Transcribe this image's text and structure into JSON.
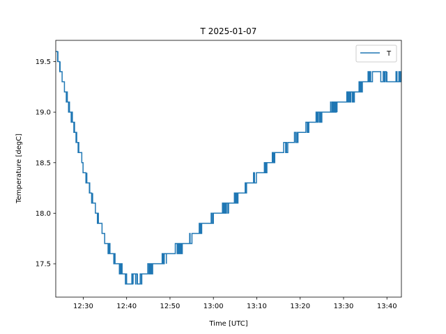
{
  "chart_data": {
    "type": "line",
    "title": "T 2025-01-07",
    "xlabel": "Time [UTC]",
    "ylabel": "Temperature [degC]",
    "x_unit": "time of day (UTC)",
    "xlim": [
      "12:23:40",
      "13:43:20"
    ],
    "ylim": [
      17.17,
      19.71
    ],
    "x_ticks": [
      "12:30",
      "12:40",
      "12:50",
      "13:00",
      "13:10",
      "13:20",
      "13:30",
      "13:40"
    ],
    "y_ticks": [
      "17.5",
      "18.0",
      "18.5",
      "19.0",
      "19.5"
    ],
    "grid": false,
    "legend": {
      "position": "top-right",
      "entries": [
        "T"
      ]
    },
    "series": [
      {
        "name": "T",
        "color": "#1f77b4",
        "quantization": 0.1,
        "points": [
          [
            "12:23:40",
            19.6
          ],
          [
            "12:24:10",
            19.5
          ],
          [
            "12:24:40",
            19.4
          ],
          [
            "12:25:10",
            19.3
          ],
          [
            "12:25:40",
            19.2
          ],
          [
            "12:26:20",
            19.1
          ],
          [
            "12:26:50",
            19.0
          ],
          [
            "12:27:30",
            18.9
          ],
          [
            "12:28:00",
            18.8
          ],
          [
            "12:28:30",
            18.7
          ],
          [
            "12:29:00",
            18.6
          ],
          [
            "12:29:40",
            18.5
          ],
          [
            "12:30:10",
            18.4
          ],
          [
            "12:30:50",
            18.3
          ],
          [
            "12:31:30",
            18.2
          ],
          [
            "12:32:10",
            18.1
          ],
          [
            "12:32:50",
            18.0
          ],
          [
            "12:33:30",
            17.9
          ],
          [
            "12:34:20",
            17.8
          ],
          [
            "12:35:10",
            17.7
          ],
          [
            "12:36:10",
            17.6
          ],
          [
            "12:37:20",
            17.5
          ],
          [
            "12:39:00",
            17.4
          ],
          [
            "12:40:00",
            17.3
          ],
          [
            "12:41:30",
            17.4
          ],
          [
            "12:42:30",
            17.3
          ],
          [
            "12:43:30",
            17.4
          ],
          [
            "12:46:00",
            17.5
          ],
          [
            "12:49:10",
            17.6
          ],
          [
            "12:52:50",
            17.7
          ],
          [
            "12:55:10",
            17.8
          ],
          [
            "12:58:00",
            17.9
          ],
          [
            "13:00:00",
            18.0
          ],
          [
            "13:03:30",
            18.1
          ],
          [
            "13:05:40",
            18.2
          ],
          [
            "13:07:50",
            18.3
          ],
          [
            "13:10:10",
            18.4
          ],
          [
            "13:12:20",
            18.5
          ],
          [
            "13:14:20",
            18.6
          ],
          [
            "13:17:10",
            18.7
          ],
          [
            "13:19:30",
            18.8
          ],
          [
            "13:22:00",
            18.9
          ],
          [
            "13:25:00",
            19.0
          ],
          [
            "13:28:30",
            19.1
          ],
          [
            "13:32:30",
            19.2
          ],
          [
            "13:34:20",
            19.3
          ],
          [
            "13:36:40",
            19.4
          ],
          [
            "13:40:00",
            19.3
          ],
          [
            "13:43:20",
            19.4
          ]
        ]
      }
    ]
  }
}
